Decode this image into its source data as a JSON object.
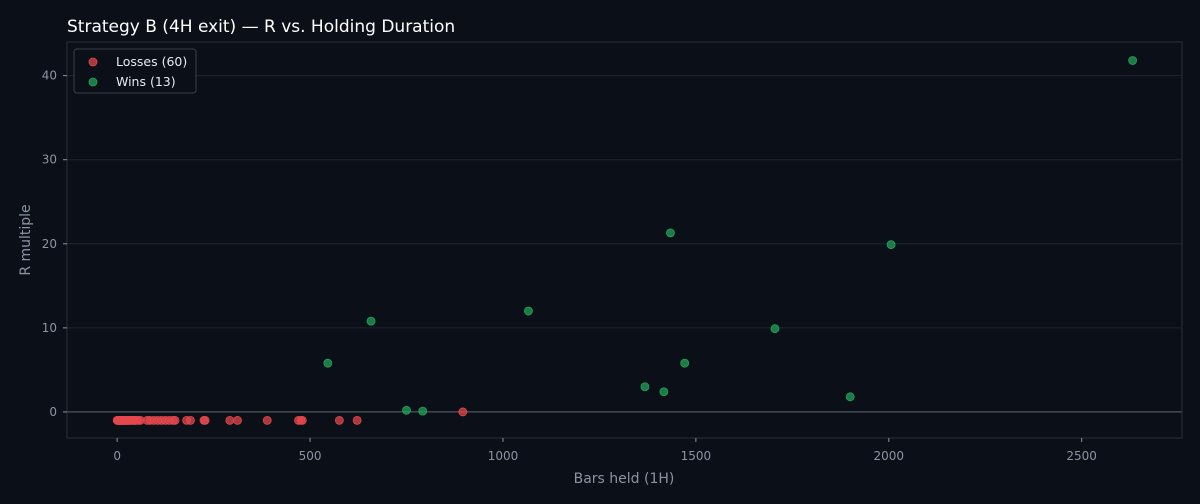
{
  "chart_data": {
    "type": "scatter",
    "title": "Strategy B (4H exit) — R vs. Holding Duration",
    "xlabel": "Bars held (1H)",
    "ylabel": "R multiple",
    "xlim": [
      -130,
      2760
    ],
    "ylim": [
      -3.1,
      44
    ],
    "xticks": [
      0,
      500,
      1000,
      1500,
      2000,
      2500
    ],
    "yticks": [
      0,
      10,
      20,
      30,
      40
    ],
    "grid": "horizontal",
    "zero_line": true,
    "legend_placement": "top-left",
    "colors": {
      "background": "#0b0f17",
      "plot_background": "#0b0f17",
      "axes_edge": "#2a2f3a",
      "grid": "#1f2530",
      "zero_line": "#5a6170",
      "losses": "#e5484d",
      "wins": "#22a559"
    },
    "series": [
      {
        "name": "Losses (60)",
        "key": "losses",
        "points": [
          [
            0,
            -1
          ],
          [
            1,
            -1
          ],
          [
            2,
            -1
          ],
          [
            3,
            -1
          ],
          [
            4,
            -1
          ],
          [
            5,
            -1
          ],
          [
            6,
            -1
          ],
          [
            7,
            -1
          ],
          [
            8,
            -1
          ],
          [
            9,
            -1
          ],
          [
            10,
            -1
          ],
          [
            11,
            -1
          ],
          [
            12,
            -1
          ],
          [
            13,
            -1
          ],
          [
            14,
            -1
          ],
          [
            15,
            -1
          ],
          [
            16,
            -1
          ],
          [
            17,
            -1
          ],
          [
            18,
            -1
          ],
          [
            19,
            -1
          ],
          [
            20,
            -1
          ],
          [
            22,
            -1
          ],
          [
            24,
            -1
          ],
          [
            26,
            -1
          ],
          [
            28,
            -1
          ],
          [
            30,
            -1
          ],
          [
            32,
            -1
          ],
          [
            35,
            -1
          ],
          [
            38,
            -1
          ],
          [
            41,
            -1
          ],
          [
            44,
            -1
          ],
          [
            47,
            -1
          ],
          [
            50,
            -1
          ],
          [
            55,
            -1
          ],
          [
            60,
            -1
          ],
          [
            78,
            -1
          ],
          [
            85,
            -1
          ],
          [
            95,
            -1
          ],
          [
            105,
            -1
          ],
          [
            115,
            -1
          ],
          [
            125,
            -1
          ],
          [
            135,
            -1
          ],
          [
            145,
            -1
          ],
          [
            150,
            -1
          ],
          [
            180,
            -1
          ],
          [
            190,
            -1
          ],
          [
            225,
            -1
          ],
          [
            228,
            -1
          ],
          [
            292,
            -1
          ],
          [
            312,
            -1
          ],
          [
            389,
            -1
          ],
          [
            470,
            -1
          ],
          [
            476,
            -1
          ],
          [
            480,
            -1
          ],
          [
            576,
            -1
          ],
          [
            622,
            -1
          ],
          [
            27,
            -1
          ],
          [
            36,
            -1
          ],
          [
            46,
            -1
          ],
          [
            896,
            0
          ]
        ]
      },
      {
        "name": "Wins (13)",
        "key": "wins",
        "points": [
          [
            546,
            5.8
          ],
          [
            658,
            10.8
          ],
          [
            750,
            0.2
          ],
          [
            792,
            0.1
          ],
          [
            1066,
            12.0
          ],
          [
            1368,
            3.0
          ],
          [
            1417,
            2.4
          ],
          [
            1434,
            21.3
          ],
          [
            1471,
            5.8
          ],
          [
            1705,
            9.9
          ],
          [
            1900,
            1.8
          ],
          [
            2006,
            19.9
          ],
          [
            2632,
            41.8
          ]
        ]
      }
    ]
  }
}
